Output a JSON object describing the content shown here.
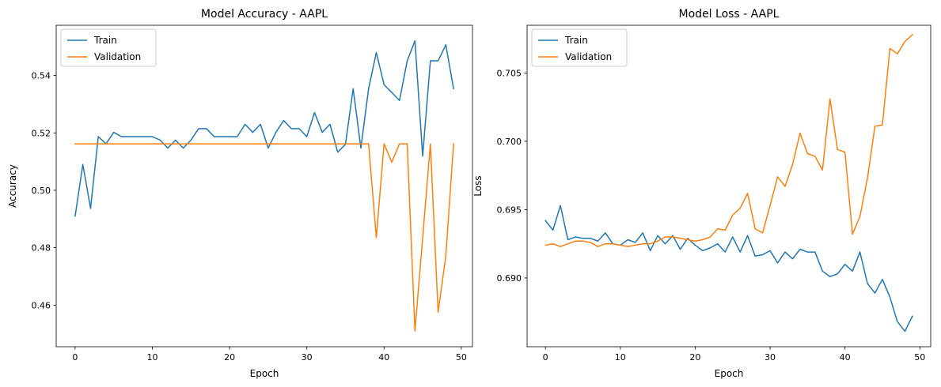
{
  "chart_data": [
    {
      "type": "line",
      "title": "Model Accuracy - AAPL",
      "xlabel": "Epoch",
      "ylabel": "Accuracy",
      "xlim": [
        -2.45,
        51.45
      ],
      "ylim": [
        0.4455,
        0.5575
      ],
      "xticks": [
        0,
        10,
        20,
        30,
        40,
        50
      ],
      "yticks": [
        0.46,
        0.48,
        0.5,
        0.52,
        0.54
      ],
      "ytick_labels": [
        "0.46",
        "0.48",
        "0.50",
        "0.52",
        "0.54"
      ],
      "legend_position": "top-left",
      "x": [
        0,
        1,
        2,
        3,
        4,
        5,
        6,
        7,
        8,
        9,
        10,
        11,
        12,
        13,
        14,
        15,
        16,
        17,
        18,
        19,
        20,
        21,
        22,
        23,
        24,
        25,
        26,
        27,
        28,
        29,
        30,
        31,
        32,
        33,
        34,
        35,
        36,
        37,
        38,
        39,
        40,
        41,
        42,
        43,
        44,
        45,
        46,
        47,
        48,
        49
      ],
      "series": [
        {
          "name": "Train",
          "color": "#1f77b4",
          "values": [
            0.491,
            0.509,
            0.4937,
            0.5187,
            0.5162,
            0.5202,
            0.5187,
            0.5187,
            0.5187,
            0.5187,
            0.5187,
            0.5175,
            0.5147,
            0.5175,
            0.5147,
            0.5175,
            0.5215,
            0.5215,
            0.5187,
            0.5187,
            0.5187,
            0.5187,
            0.523,
            0.5202,
            0.523,
            0.5147,
            0.5202,
            0.5243,
            0.5215,
            0.5215,
            0.5187,
            0.5271,
            0.5202,
            0.523,
            0.5133,
            0.516,
            0.5354,
            0.5147,
            0.5354,
            0.548,
            0.5368,
            0.5341,
            0.5313,
            0.5451,
            0.5521,
            0.5119,
            0.5451,
            0.5451,
            0.5507,
            0.5354
          ]
        },
        {
          "name": "Validation",
          "color": "#ff7f0e",
          "values": [
            0.5162,
            0.5162,
            0.5162,
            0.5162,
            0.5162,
            0.5162,
            0.5162,
            0.5162,
            0.5162,
            0.5162,
            0.5162,
            0.5162,
            0.5162,
            0.5162,
            0.5162,
            0.5162,
            0.5162,
            0.5162,
            0.5162,
            0.5162,
            0.5162,
            0.5162,
            0.5162,
            0.5162,
            0.5162,
            0.5162,
            0.5162,
            0.5162,
            0.5162,
            0.5162,
            0.5162,
            0.5162,
            0.5162,
            0.5162,
            0.5162,
            0.5162,
            0.5162,
            0.5162,
            0.5162,
            0.4835,
            0.5162,
            0.5098,
            0.5162,
            0.5162,
            0.451,
            0.4835,
            0.5162,
            0.4575,
            0.4772,
            0.5162
          ]
        }
      ]
    },
    {
      "type": "line",
      "title": "Model Loss - AAPL",
      "xlabel": "Epoch",
      "ylabel": "Loss",
      "xlim": [
        -2.45,
        51.45
      ],
      "ylim": [
        0.68497,
        0.70849
      ],
      "xticks": [
        0,
        10,
        20,
        30,
        40,
        50
      ],
      "yticks": [
        0.69,
        0.695,
        0.7,
        0.705
      ],
      "ytick_labels": [
        "0.690",
        "0.695",
        "0.700",
        "0.705"
      ],
      "legend_position": "top-left",
      "x": [
        0,
        1,
        2,
        3,
        4,
        5,
        6,
        7,
        8,
        9,
        10,
        11,
        12,
        13,
        14,
        15,
        16,
        17,
        18,
        19,
        20,
        21,
        22,
        23,
        24,
        25,
        26,
        27,
        28,
        29,
        30,
        31,
        32,
        33,
        34,
        35,
        36,
        37,
        38,
        39,
        40,
        41,
        42,
        43,
        44,
        45,
        46,
        47,
        48,
        49
      ],
      "series": [
        {
          "name": "Train",
          "color": "#1f77b4",
          "values": [
            0.6942,
            0.6935,
            0.6953,
            0.6928,
            0.693,
            0.6929,
            0.6929,
            0.6927,
            0.6933,
            0.6925,
            0.6924,
            0.6928,
            0.6926,
            0.6933,
            0.692,
            0.6931,
            0.6925,
            0.6931,
            0.6921,
            0.6929,
            0.6924,
            0.692,
            0.6922,
            0.6925,
            0.6919,
            0.693,
            0.6919,
            0.6931,
            0.6916,
            0.6917,
            0.692,
            0.6911,
            0.6919,
            0.6914,
            0.6921,
            0.6919,
            0.6919,
            0.6905,
            0.6901,
            0.6903,
            0.691,
            0.6905,
            0.6919,
            0.6896,
            0.6889,
            0.6899,
            0.6886,
            0.6868,
            0.6861,
            0.6872
          ]
        },
        {
          "name": "Validation",
          "color": "#ff7f0e",
          "values": [
            0.6924,
            0.6925,
            0.6923,
            0.6925,
            0.6927,
            0.6927,
            0.6926,
            0.6923,
            0.6925,
            0.6925,
            0.6924,
            0.6923,
            0.6924,
            0.6925,
            0.6925,
            0.6927,
            0.693,
            0.693,
            0.6929,
            0.6928,
            0.6927,
            0.6928,
            0.693,
            0.6936,
            0.6935,
            0.6946,
            0.6951,
            0.6962,
            0.6936,
            0.6933,
            0.6953,
            0.6974,
            0.6967,
            0.6983,
            0.7006,
            0.6991,
            0.6989,
            0.6979,
            0.7031,
            0.6994,
            0.6992,
            0.6932,
            0.6945,
            0.6973,
            0.7011,
            0.7012,
            0.7068,
            0.7064,
            0.7073,
            0.7078
          ]
        }
      ]
    }
  ]
}
